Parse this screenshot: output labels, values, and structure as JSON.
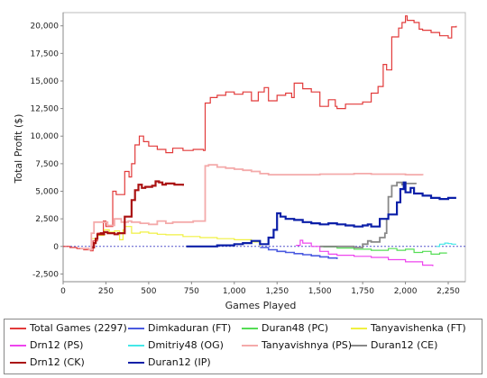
{
  "chart_data": {
    "type": "line",
    "title": "",
    "xlabel": "Games Played",
    "ylabel": "Total Profit ($)",
    "xlim": [
      0,
      2350
    ],
    "ylim": [
      -3200,
      21200
    ],
    "x_ticks": [
      0,
      250,
      500,
      750,
      1000,
      1250,
      1500,
      1750,
      2000,
      2250
    ],
    "x_tick_labels": [
      "0",
      "250",
      "500",
      "750",
      "1,000",
      "1,250",
      "1,500",
      "1,750",
      "2,000",
      "2,250"
    ],
    "y_ticks": [
      -2500,
      0,
      2500,
      5000,
      7500,
      10000,
      12500,
      15000,
      17500,
      20000
    ],
    "y_tick_labels": [
      "-2,500",
      "0",
      "2,500",
      "5,000",
      "7,500",
      "10,000",
      "12,500",
      "15,000",
      "17,500",
      "20,000"
    ],
    "zero_line_color": "#5555cc",
    "legend_position": "bottom",
    "series": [
      {
        "name": "Total Games (2297)",
        "color": "#e23a3a",
        "x": [
          0,
          40,
          80,
          120,
          160,
          175,
          200,
          235,
          250,
          290,
          310,
          360,
          385,
          400,
          420,
          445,
          470,
          500,
          550,
          600,
          640,
          700,
          760,
          820,
          830,
          860,
          900,
          950,
          1000,
          1050,
          1100,
          1140,
          1175,
          1200,
          1250,
          1300,
          1335,
          1350,
          1400,
          1450,
          1500,
          1550,
          1590,
          1600,
          1650,
          1700,
          1750,
          1800,
          1840,
          1870,
          1890,
          1920,
          1960,
          1980,
          2000,
          2010,
          2050,
          2080,
          2100,
          2150,
          2200,
          2250,
          2270,
          2297
        ],
        "y": [
          0,
          -100,
          -200,
          -300,
          -400,
          500,
          1200,
          2300,
          1800,
          5000,
          4700,
          6800,
          6300,
          7500,
          9200,
          10000,
          9500,
          9100,
          8800,
          8500,
          8900,
          8700,
          8800,
          8700,
          13000,
          13500,
          13700,
          14000,
          13800,
          14000,
          13200,
          14000,
          14400,
          13200,
          13700,
          13900,
          13500,
          14800,
          14300,
          14000,
          12700,
          13300,
          12700,
          12500,
          12900,
          12900,
          13100,
          13900,
          14500,
          16500,
          16000,
          19000,
          19800,
          20300,
          20900,
          20500,
          20300,
          19700,
          19600,
          19400,
          19100,
          18900,
          19900,
          20000
        ]
      },
      {
        "name": "Dimkaduran (FT)",
        "color": "#4a5ae0",
        "x": [
          1150,
          1200,
          1250,
          1300,
          1350,
          1400,
          1450,
          1500,
          1550,
          1600
        ],
        "y": [
          -100,
          -300,
          -450,
          -550,
          -650,
          -750,
          -850,
          -950,
          -1050,
          -1150
        ]
      },
      {
        "name": "Duran48 (PC)",
        "color": "#55dd55",
        "x": [
          1520,
          1600,
          1700,
          1800,
          1900,
          1950,
          2000,
          2050,
          2100,
          2150,
          2200,
          2240
        ],
        "y": [
          -50,
          -150,
          -250,
          -350,
          -200,
          -350,
          -250,
          -550,
          -450,
          -700,
          -600,
          -550
        ]
      },
      {
        "name": "Tanyavishenka (FT)",
        "color": "#f0f040",
        "x": [
          170,
          200,
          240,
          270,
          300,
          330,
          350,
          360,
          400,
          450,
          500,
          550,
          600,
          700,
          800,
          900,
          1000,
          1100,
          1150
        ],
        "y": [
          700,
          1000,
          1500,
          1300,
          1400,
          600,
          1500,
          1800,
          1200,
          1300,
          1200,
          1100,
          1050,
          900,
          800,
          700,
          600,
          400,
          0
        ]
      },
      {
        "name": "Drn12 (PS)",
        "color": "#ee44ee",
        "x": [
          1360,
          1385,
          1400,
          1450,
          1500,
          1550,
          1600,
          1700,
          1800,
          1900,
          2000,
          2100,
          2160
        ],
        "y": [
          100,
          550,
          300,
          0,
          -450,
          -700,
          -800,
          -900,
          -1000,
          -1200,
          -1400,
          -1700,
          -1800
        ]
      },
      {
        "name": "Dmitriy48 (OG)",
        "color": "#44e8e8",
        "x": [
          2180,
          2200,
          2230,
          2250,
          2270,
          2297
        ],
        "y": [
          0,
          200,
          300,
          250,
          200,
          200
        ]
      },
      {
        "name": "Tanyavishnya (PS)",
        "color": "#f4aaaa",
        "x": [
          100,
          150,
          165,
          180,
          200,
          260,
          300,
          340,
          380,
          400,
          450,
          500,
          550,
          600,
          640,
          680,
          700,
          760,
          820,
          830,
          850,
          900,
          950,
          1000,
          1050,
          1100,
          1150,
          1200,
          1300,
          1400,
          1500,
          1600,
          1700,
          1800,
          1900,
          2000,
          2100
        ],
        "y": [
          -200,
          -300,
          1200,
          2200,
          2200,
          1900,
          2500,
          2200,
          2300,
          2200,
          2100,
          2000,
          2300,
          2100,
          2200,
          2200,
          2200,
          2300,
          2300,
          7300,
          7400,
          7200,
          7100,
          7000,
          6900,
          6800,
          6600,
          6500,
          6500,
          6500,
          6550,
          6550,
          6600,
          6550,
          6550,
          6500,
          6450
        ]
      },
      {
        "name": "Duran12 (CE)",
        "color": "#888888",
        "x": [
          1500,
          1650,
          1700,
          1750,
          1780,
          1800,
          1850,
          1880,
          1890,
          1900,
          1920,
          1950,
          1980,
          2000,
          2050,
          2060
        ],
        "y": [
          0,
          0,
          -100,
          200,
          500,
          400,
          800,
          1200,
          2500,
          4500,
          5500,
          5800,
          5600,
          5700,
          5700,
          5650
        ]
      },
      {
        "name": "Drn12 (CK)",
        "color": "#aa1111",
        "x": [
          170,
          180,
          190,
          200,
          220,
          230,
          240,
          260,
          300,
          320,
          360,
          400,
          420,
          440,
          460,
          480,
          520,
          540,
          560,
          580,
          600,
          650,
          700
        ],
        "y": [
          -100,
          300,
          700,
          1100,
          1200,
          1100,
          1300,
          1200,
          1100,
          1200,
          2700,
          4200,
          5100,
          5600,
          5300,
          5400,
          5500,
          5900,
          5800,
          5600,
          5700,
          5600,
          5500
        ]
      },
      {
        "name": "Duran12 (IP)",
        "color": "#0b1fa8",
        "x": [
          720,
          800,
          900,
          1000,
          1050,
          1100,
          1150,
          1200,
          1230,
          1250,
          1270,
          1300,
          1350,
          1400,
          1450,
          1500,
          1550,
          1600,
          1650,
          1700,
          1750,
          1780,
          1800,
          1850,
          1900,
          1950,
          1970,
          1990,
          2000,
          2030,
          2050,
          2100,
          2150,
          2200,
          2250,
          2297
        ],
        "y": [
          0,
          0,
          100,
          200,
          300,
          500,
          200,
          800,
          1500,
          3000,
          2700,
          2500,
          2400,
          2200,
          2100,
          2000,
          2100,
          2000,
          1900,
          1800,
          1900,
          2000,
          1800,
          2500,
          2900,
          4000,
          5200,
          5800,
          4900,
          5300,
          4800,
          4600,
          4400,
          4300,
          4400,
          4400
        ]
      }
    ]
  }
}
